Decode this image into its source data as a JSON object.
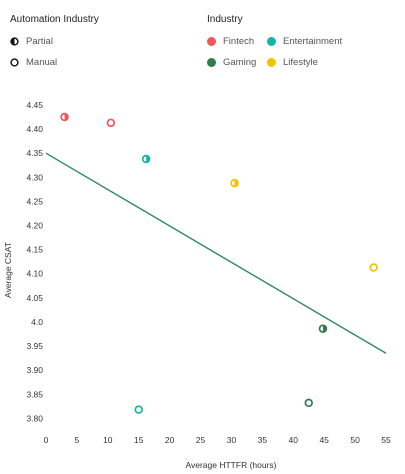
{
  "legend": {
    "automation": {
      "title": "Automation Industry",
      "items": [
        {
          "label": "Partial",
          "icon": "half-filled-circle-icon"
        },
        {
          "label": "Manual",
          "icon": "hollow-circle-icon"
        }
      ]
    },
    "industry": {
      "title": "Industry",
      "items": [
        {
          "label": "Fintech",
          "color": "#f0575d"
        },
        {
          "label": "Entertainment",
          "color": "#13b5a3"
        },
        {
          "label": "Gaming",
          "color": "#2f7d4f"
        },
        {
          "label": "Lifestyle",
          "color": "#f2c200"
        }
      ]
    }
  },
  "chart_data": {
    "type": "scatter",
    "xlabel": "Average HTTFR (hours)",
    "ylabel": "Average CSAT",
    "xlim": [
      0,
      55
    ],
    "ylim": [
      3.78,
      4.45
    ],
    "xticks": [
      0,
      5,
      10,
      15,
      20,
      25,
      30,
      35,
      40,
      45,
      50,
      55
    ],
    "yticks": [
      3.8,
      3.85,
      3.9,
      3.95,
      4.0,
      4.05,
      4.1,
      4.15,
      4.2,
      4.25,
      4.3,
      4.35,
      4.4,
      4.45
    ],
    "ytick_labels": [
      "3.80",
      "3.85",
      "3.90",
      "3.95",
      "4.0",
      "4.05",
      "4.10",
      "4.15",
      "4.20",
      "4.25",
      "4.30",
      "4.35",
      "4.40",
      "4.45"
    ],
    "grid": false,
    "trendline": {
      "color": "#2e8b57",
      "x": [
        0,
        55
      ],
      "y": [
        4.35,
        3.935
      ]
    },
    "points": [
      {
        "x": 3,
        "y": 4.425,
        "industry": "Fintech",
        "automation": "Partial"
      },
      {
        "x": 10.5,
        "y": 4.413,
        "industry": "Fintech",
        "automation": "Manual"
      },
      {
        "x": 16.2,
        "y": 4.338,
        "industry": "Entertainment",
        "automation": "Partial"
      },
      {
        "x": 30.5,
        "y": 4.288,
        "industry": "Lifestyle",
        "automation": "Partial"
      },
      {
        "x": 53,
        "y": 4.113,
        "industry": "Lifestyle",
        "automation": "Manual"
      },
      {
        "x": 44.8,
        "y": 3.986,
        "industry": "Gaming",
        "automation": "Partial"
      },
      {
        "x": 42.5,
        "y": 3.832,
        "industry": "Gaming",
        "automation": "Manual"
      },
      {
        "x": 15,
        "y": 3.818,
        "industry": "Entertainment",
        "automation": "Manual"
      }
    ]
  }
}
